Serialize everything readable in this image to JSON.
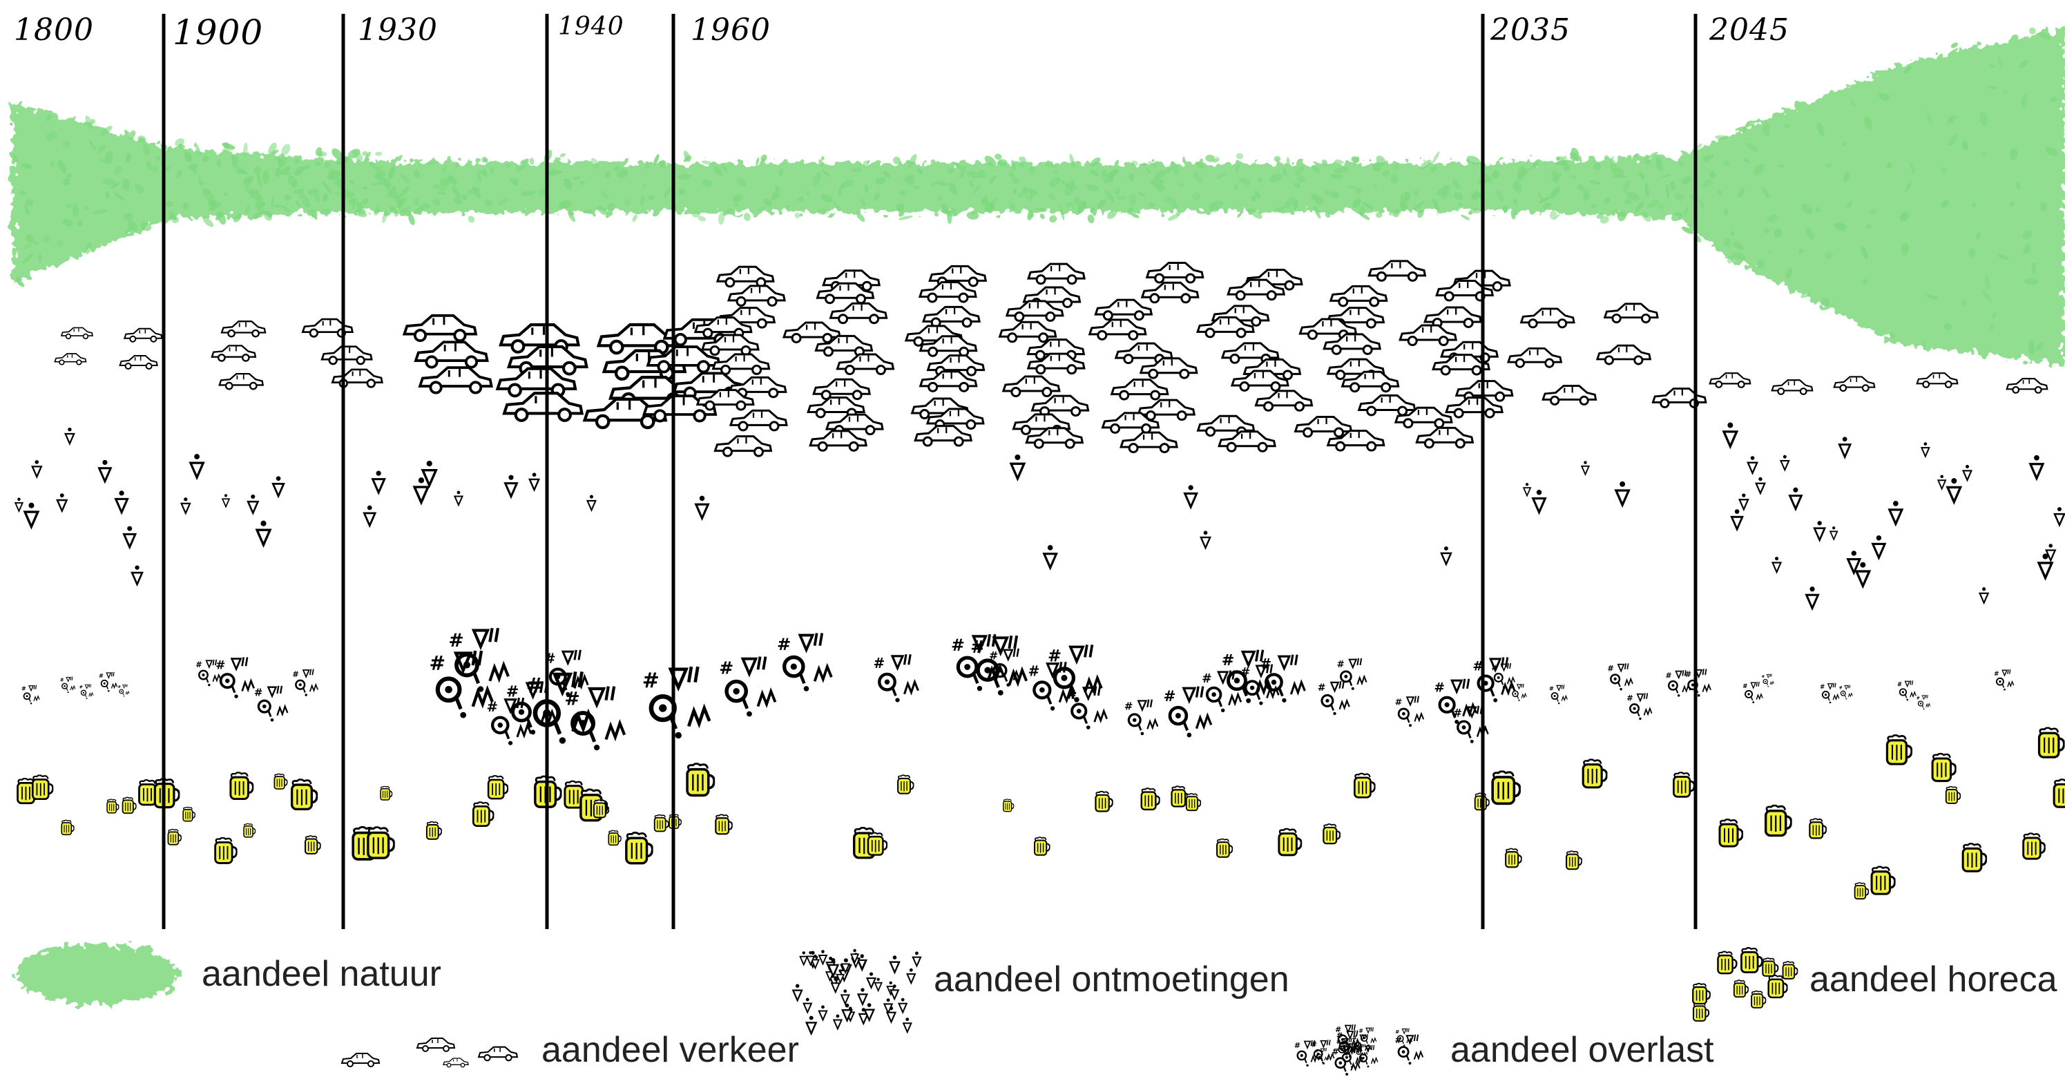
{
  "timeline": {
    "years": [
      "1800",
      "1900",
      "1930",
      "1940",
      "1960",
      "2035",
      "2045"
    ]
  },
  "rows": [
    {
      "key": "natuur",
      "icon": "leaf-cluster",
      "color": "#7ed87e"
    },
    {
      "key": "verkeer",
      "icon": "car",
      "color": "#000000"
    },
    {
      "key": "ontmoetingen",
      "icon": "person-drop",
      "color": "#000000"
    },
    {
      "key": "overlast",
      "icon": "curse-symbols",
      "color": "#333333"
    },
    {
      "key": "horeca",
      "icon": "beer-mug",
      "color": "#f0f03a"
    }
  ],
  "legend": {
    "natuur": "aandeel natuur",
    "ontmoetingen": "aandeel ontmoetingen",
    "horeca": "aandeel horeca",
    "verkeer": "aandeel verkeer",
    "overlast": "aandeel overlast"
  }
}
